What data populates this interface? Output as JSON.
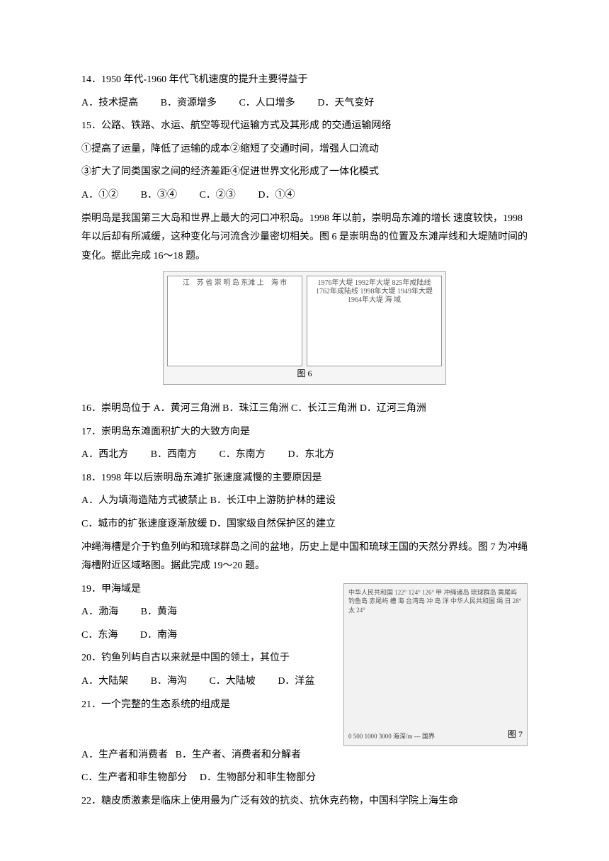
{
  "q14": {
    "text": "14．1950 年代-1960 年代飞机速度的提升主要得益于",
    "A": "A．技术提高",
    "B": "B．资源增多",
    "C": "C．人口增多",
    "D": "D．天气变好"
  },
  "q15": {
    "text": "15．公路、铁路、水运、航空等现代运输方式及其形成 的交通运输网络",
    "line1": "①提高了运量，降低了运输的成本②缩短了交通时间，增强人口流动",
    "line2": "③扩大了同类国家之间的经济差距④促进世界文化形成了一体化模式",
    "A": "A．①②",
    "B": "B．③④",
    "C": "C．②③",
    "D": "D．①④"
  },
  "passage16": "崇明岛是我国第三大岛和世界上最大的河口冲积岛。1998 年以前，崇明岛东滩的增长 速度较快，1998 年以后却有所减缓，这种变化与河流含沙量密切相关。图 6 是崇明岛的位置及东滩岸线和大堤随时间的变化。据此完成 16～18 题。",
  "fig6": {
    "caption": "图 6",
    "left_labels": "江　苏\n省\n崇\n明\n岛\n东滩\n上　海\n市",
    "right_labels": "1976年大堤\n1992年大堤\n825年成陆线\n1762年成陆线\n1998年大堤\n1949年大堤\n1964年大堤\n海\n域"
  },
  "q16": {
    "text": "16．崇明岛位于",
    "A": "A．黄河三角洲",
    "B": "B．珠江三角洲",
    "C": "C．长江三角洲",
    "D": "D．辽河三角洲"
  },
  "q17": {
    "text": "17．崇明岛东滩面积扩大的大致方向是",
    "A": "A．西北方",
    "B": "B．西南方",
    "C": "C．东南方",
    "D": "D．东北方"
  },
  "q18": {
    "text": "18．1998 年以后崇明岛东滩扩张速度减慢的主要原因是",
    "A": "A．人为填海造陆方式被禁止",
    "B": "B．长江中上游防护林的建设",
    "C": "C．城市的扩张速度逐渐放缓",
    "D": "D．国家级自然保护区的建立"
  },
  "passage19": "冲绳海槽是介于钓鱼列屿和琉球群岛之间的盆地，历史上是中国和琉球王国的天然分界线。图 7 为冲绳海槽附近区域略图。据此完成 19～20 题。",
  "fig7": {
    "caption": "图 7",
    "labels": "中华人民共和国 122° 124° 126°\n甲\n冲绳诸岛 琉球群岛\n黄尾屿\n钓鱼岛 赤尾屿 槽 海\n台湾岛 冲 岛 洋\n中华人民共和国 绳 日 28°\n太 24°",
    "scale": "0 500 1000 3000  海深/m  --- 国界"
  },
  "q19": {
    "text": "19．甲海域是",
    "A": "A．渤海",
    "B": "B．黄海",
    "C": "C．东海",
    "D": "D．南海"
  },
  "q20": {
    "text": "20．钓鱼列屿自古以来就是中国的领土，其位于",
    "A": "A．大陆架",
    "B": "B．海沟",
    "C": "C．大陆坡",
    "D": "D．洋盆"
  },
  "q21": {
    "text": "21．一个完整的生态系统的组成是",
    "A": "A．生产者和消费者",
    "B": "B．生产者、消费者和分解者",
    "C": "C．生产者和非生物部分",
    "D": "D．生物部分和非生物部分"
  },
  "q22": {
    "text": "22．糖皮质激素是临床上使用最为广泛有效的抗炎、抗休克药物，中国科学院上海生命"
  }
}
